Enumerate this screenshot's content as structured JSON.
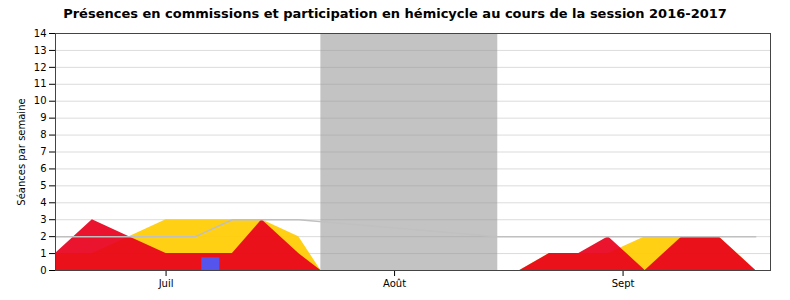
{
  "chart_data": {
    "type": "area",
    "title": "Présences en commissions et participation en hémicycle au cours de la session 2016-2017",
    "ylabel": "Séances par semaine",
    "xlim": [
      0,
      97
    ],
    "xticks": [
      {
        "value": 15,
        "label": "Juil"
      },
      {
        "value": 46,
        "label": "Août"
      },
      {
        "value": 77,
        "label": "Sept"
      }
    ],
    "ylim": [
      0,
      14
    ],
    "yticks": [
      0,
      1,
      2,
      3,
      4,
      5,
      6,
      7,
      8,
      9,
      10,
      11,
      12,
      13,
      14
    ],
    "grid": true,
    "shaded_ranges": [
      {
        "x": [
          36,
          60
        ],
        "color": "#b8b8b8"
      }
    ],
    "series": [
      {
        "type": "area",
        "color": "#ffcc00",
        "x": [
          0,
          5,
          10,
          15,
          19,
          24,
          28,
          33,
          36,
          60,
          63,
          67,
          71,
          75,
          80,
          85,
          90,
          95,
          97
        ],
        "values": [
          1,
          1,
          2,
          3,
          3,
          3,
          3,
          2,
          0,
          0,
          0,
          1,
          1,
          1,
          2,
          2,
          2,
          0,
          0
        ]
      },
      {
        "type": "area",
        "color": "#e8001c",
        "x": [
          0,
          5,
          10,
          15,
          19,
          24,
          28,
          33,
          36,
          60,
          63,
          67,
          71,
          75,
          80,
          85,
          90,
          95,
          97
        ],
        "values": [
          1,
          3,
          2,
          1,
          1,
          1,
          3,
          1,
          0,
          0,
          0,
          1,
          1,
          2,
          0,
          2,
          2,
          0,
          0
        ]
      },
      {
        "type": "line",
        "color": "#c0c0c0",
        "x": [
          0,
          5,
          10,
          15,
          19,
          24,
          28,
          33,
          60,
          67,
          71,
          75,
          80,
          85,
          90,
          95
        ],
        "values": [
          2,
          2,
          2,
          2,
          2,
          3,
          3,
          3,
          2,
          2,
          2,
          2,
          2,
          2,
          2,
          2
        ]
      },
      {
        "type": "bar",
        "color": "#5555ee",
        "x": [
          21
        ],
        "values": [
          0.75
        ]
      }
    ]
  }
}
